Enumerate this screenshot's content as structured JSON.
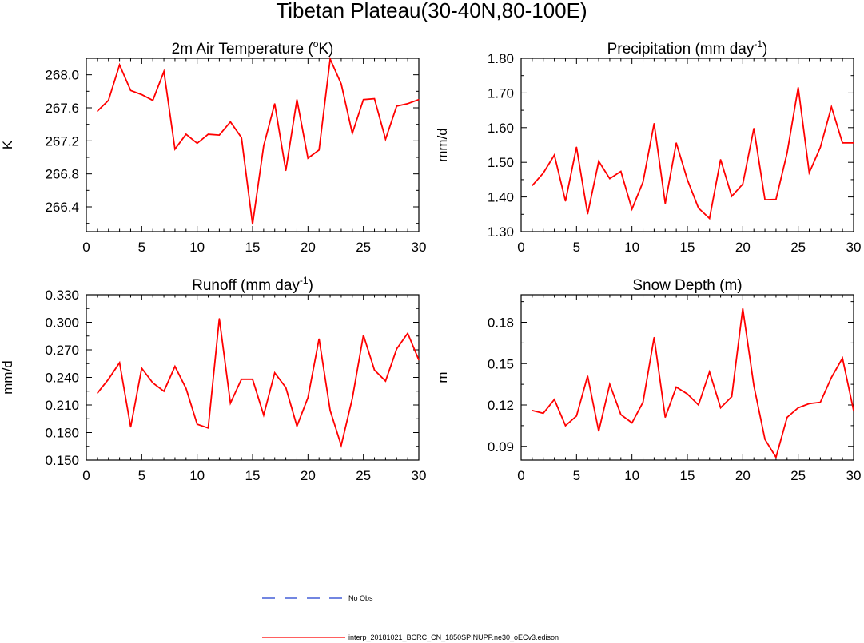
{
  "figure_title": "Tibetan Plateau(30-40N,80-100E)",
  "colors": {
    "model_line": "#ff0000",
    "obs_line": "#1f3fcf",
    "axis": "#000000"
  },
  "legend": {
    "obs_label": "No Obs",
    "model_label": "interp_20181021_BCRC_CN_1850SPINUPP.ne30_oECv3.edison"
  },
  "chart_data": [
    {
      "type": "line",
      "title": "2m Air Temperature (",
      "title_sup": "o",
      "title_tail": "K)",
      "xlabel": "",
      "ylabel": "K",
      "xlim": [
        0,
        30
      ],
      "ylim": [
        266.1,
        268.2
      ],
      "xticks": [
        0,
        5,
        10,
        15,
        20,
        25,
        30
      ],
      "yticks": [
        266.4,
        266.8,
        267.2,
        267.6,
        268.0
      ],
      "ytick_labels": [
        "266.4",
        "266.8",
        "267.2",
        "267.6",
        "268.0"
      ],
      "series": [
        {
          "name": "interp_20181021_BCRC_CN_1850SPINUPP.ne30_oECv3.edison",
          "x": [
            1,
            2,
            3,
            4,
            5,
            6,
            7,
            8,
            9,
            10,
            11,
            12,
            13,
            14,
            15,
            16,
            17,
            18,
            19,
            20,
            21,
            22,
            23,
            24,
            25,
            26,
            27,
            28,
            29,
            30
          ],
          "values": [
            267.56,
            267.69,
            268.12,
            267.81,
            267.76,
            267.69,
            268.04,
            267.1,
            267.28,
            267.17,
            267.28,
            267.27,
            267.43,
            267.24,
            266.19,
            267.14,
            267.65,
            266.84,
            267.7,
            266.99,
            267.09,
            268.19,
            267.89,
            267.29,
            267.7,
            267.71,
            267.22,
            267.62,
            267.65,
            267.7
          ]
        }
      ]
    },
    {
      "type": "line",
      "title": "Precipitation (mm day",
      "title_sup": "-1",
      "title_tail": ")",
      "xlabel": "",
      "ylabel": "mm/d",
      "xlim": [
        0,
        30
      ],
      "ylim": [
        1.3,
        1.8
      ],
      "xticks": [
        0,
        5,
        10,
        15,
        20,
        25,
        30
      ],
      "yticks": [
        1.3,
        1.4,
        1.5,
        1.6,
        1.7,
        1.8
      ],
      "ytick_labels": [
        "1.30",
        "1.40",
        "1.50",
        "1.60",
        "1.70",
        "1.80"
      ],
      "series": [
        {
          "name": "interp_20181021_BCRC_CN_1850SPINUPP.ne30_oECv3.edison",
          "x": [
            1,
            2,
            3,
            4,
            5,
            6,
            7,
            8,
            9,
            10,
            11,
            12,
            13,
            14,
            15,
            16,
            17,
            18,
            19,
            20,
            21,
            22,
            23,
            24,
            25,
            26,
            27,
            28,
            29,
            30
          ],
          "values": [
            1.433,
            1.469,
            1.521,
            1.388,
            1.544,
            1.351,
            1.503,
            1.453,
            1.474,
            1.365,
            1.443,
            1.612,
            1.381,
            1.556,
            1.45,
            1.368,
            1.338,
            1.508,
            1.402,
            1.437,
            1.598,
            1.392,
            1.393,
            1.527,
            1.716,
            1.47,
            1.543,
            1.66,
            1.556,
            1.556
          ]
        }
      ]
    },
    {
      "type": "line",
      "title": "Runoff (mm day",
      "title_sup": "-1",
      "title_tail": ")",
      "xlabel": "",
      "ylabel": "mm/d",
      "xlim": [
        0,
        30
      ],
      "ylim": [
        0.15,
        0.33
      ],
      "xticks": [
        0,
        5,
        10,
        15,
        20,
        25,
        30
      ],
      "yticks": [
        0.15,
        0.18,
        0.21,
        0.24,
        0.27,
        0.3,
        0.33
      ],
      "ytick_labels": [
        "0.150",
        "0.180",
        "0.210",
        "0.240",
        "0.270",
        "0.300",
        "0.330"
      ],
      "series": [
        {
          "name": "interp_20181021_BCRC_CN_1850SPINUPP.ne30_oECv3.edison",
          "x": [
            1,
            2,
            3,
            4,
            5,
            6,
            7,
            8,
            9,
            10,
            11,
            12,
            13,
            14,
            15,
            16,
            17,
            18,
            19,
            20,
            21,
            22,
            23,
            24,
            25,
            26,
            27,
            28,
            29,
            30
          ],
          "values": [
            0.223,
            0.238,
            0.256,
            0.186,
            0.25,
            0.234,
            0.225,
            0.252,
            0.228,
            0.189,
            0.185,
            0.304,
            0.212,
            0.238,
            0.238,
            0.199,
            0.245,
            0.229,
            0.187,
            0.218,
            0.282,
            0.204,
            0.166,
            0.217,
            0.286,
            0.248,
            0.236,
            0.271,
            0.288,
            0.259
          ]
        }
      ]
    },
    {
      "type": "line",
      "title": "Snow Depth (m)",
      "title_sup": "",
      "title_tail": "",
      "xlabel": "",
      "ylabel": "m",
      "xlim": [
        0,
        30
      ],
      "ylim": [
        0.08,
        0.2
      ],
      "xticks": [
        0,
        5,
        10,
        15,
        20,
        25,
        30
      ],
      "yticks": [
        0.09,
        0.12,
        0.15,
        0.18
      ],
      "ytick_labels": [
        "0.09",
        "0.12",
        "0.15",
        "0.18"
      ],
      "series": [
        {
          "name": "interp_20181021_BCRC_CN_1850SPINUPP.ne30_oECv3.edison",
          "x": [
            1,
            2,
            3,
            4,
            5,
            6,
            7,
            8,
            9,
            10,
            11,
            12,
            13,
            14,
            15,
            16,
            17,
            18,
            19,
            20,
            21,
            22,
            23,
            24,
            25,
            26,
            27,
            28,
            29,
            30
          ],
          "values": [
            0.116,
            0.114,
            0.124,
            0.105,
            0.112,
            0.141,
            0.101,
            0.135,
            0.113,
            0.107,
            0.122,
            0.169,
            0.111,
            0.133,
            0.128,
            0.12,
            0.144,
            0.118,
            0.126,
            0.19,
            0.134,
            0.095,
            0.082,
            0.111,
            0.118,
            0.121,
            0.122,
            0.14,
            0.154,
            0.116
          ]
        }
      ]
    }
  ]
}
